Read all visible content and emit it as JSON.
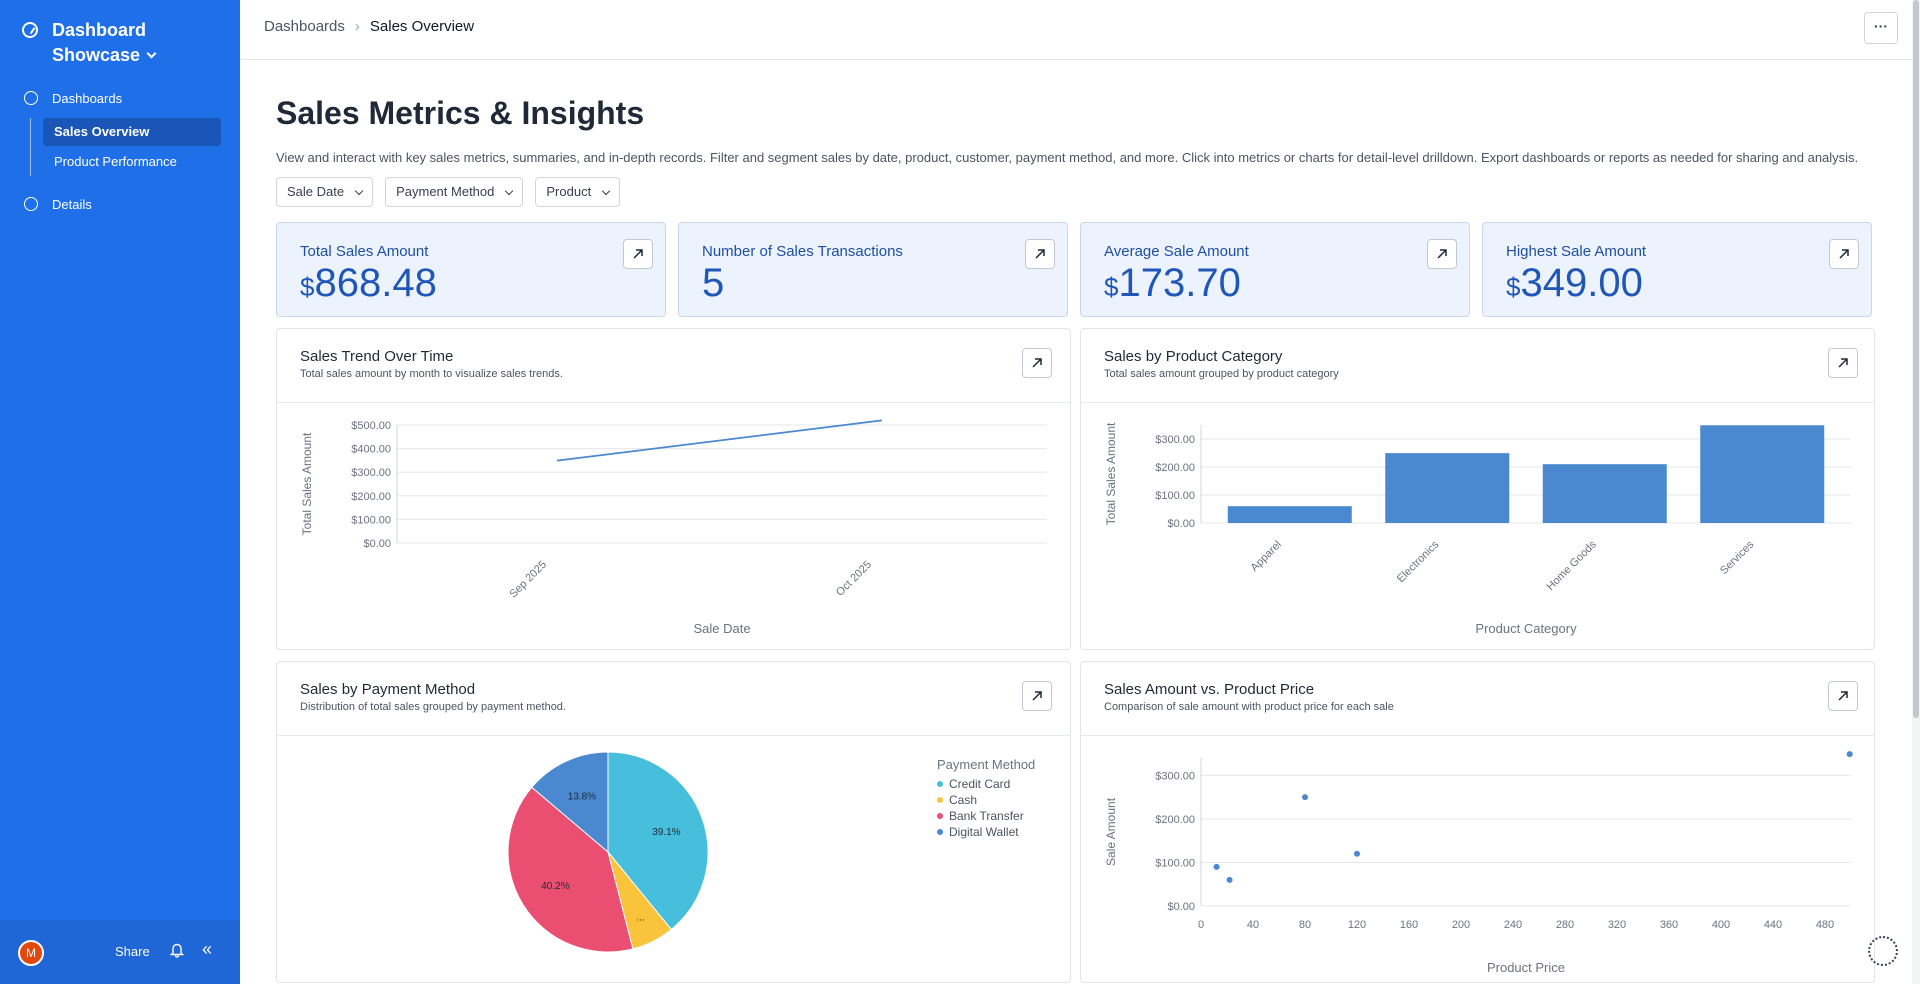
{
  "sidebar": {
    "brand": "Dashboard Showcase",
    "nav_dashboards": "Dashboards",
    "items": [
      {
        "label": "Sales Overview"
      },
      {
        "label": "Product Performance"
      }
    ],
    "nav_details": "Details",
    "avatar_initial": "M",
    "share": "Share"
  },
  "topbar": {
    "breadcrumb_root": "Dashboards",
    "breadcrumb_current": "Sales Overview",
    "more": "···"
  },
  "page": {
    "title": "Sales Metrics & Insights",
    "description": "View and interact with key sales metrics, summaries, and in-depth records. Filter and segment sales by date, product, customer, payment method, and more. Click into metrics or charts for detail-level drilldown. Export dashboards or reports as needed for sharing and analysis."
  },
  "filters": [
    "Sale Date",
    "Payment Method",
    "Product"
  ],
  "metrics": [
    {
      "label": "Total Sales Amount",
      "currency": "$",
      "value": "868.48"
    },
    {
      "label": "Number of Sales Transactions",
      "currency": "",
      "value": "5"
    },
    {
      "label": "Average Sale Amount",
      "currency": "$",
      "value": "173.70"
    },
    {
      "label": "Highest Sale Amount",
      "currency": "$",
      "value": "349.00"
    }
  ],
  "panels": {
    "trend": {
      "title": "Sales Trend Over Time",
      "subtitle": "Total sales amount by month to visualize sales trends."
    },
    "category": {
      "title": "Sales by Product Category",
      "subtitle": "Total sales amount grouped by product category"
    },
    "payment": {
      "title": "Sales by Payment Method",
      "subtitle": "Distribution of total sales grouped by payment method."
    },
    "scatter": {
      "title": "Sales Amount vs. Product Price",
      "subtitle": "Comparison of sale amount with product price for each sale"
    }
  },
  "colors": {
    "sidebar": "#1e6fe8",
    "accent": "#1f56b8",
    "series": "#4a88cf",
    "credit_card": "#47bfdc",
    "cash": "#f9c33b",
    "bank_transfer": "#ea4f72",
    "digital_wallet": "#4a88cf"
  },
  "chart_data": [
    {
      "type": "line",
      "x": [
        "Sep 2025",
        "Oct 2025"
      ],
      "values": [
        349.0,
        519.48
      ],
      "xlabel": "Sale Date",
      "ylabel": "Total Sales Amount",
      "yticks": [
        "$0.00",
        "$100.00",
        "$200.00",
        "$300.00",
        "$400.00",
        "$500.00"
      ],
      "ylim": [
        0,
        500
      ]
    },
    {
      "type": "bar",
      "categories": [
        "Apparel",
        "Electronics",
        "Home Goods",
        "Services"
      ],
      "values": [
        59.99,
        249.5,
        209.99,
        349.0
      ],
      "xlabel": "Product Category",
      "ylabel": "Total Sales Amount",
      "yticks": [
        "$0.00",
        "$100.00",
        "$200.00",
        "$300.00"
      ],
      "ylim": [
        0,
        350
      ]
    },
    {
      "type": "pie",
      "legend_title": "Payment Method",
      "slices": [
        {
          "name": "Credit Card",
          "value": 39.1,
          "label": "39.1%"
        },
        {
          "name": "Cash",
          "value": 6.9,
          "label": "..."
        },
        {
          "name": "Bank Transfer",
          "value": 40.2,
          "label": "40.2%"
        },
        {
          "name": "Digital Wallet",
          "value": 13.8,
          "label": "13.8%"
        }
      ]
    },
    {
      "type": "scatter",
      "points": [
        {
          "x": 12,
          "y": 90
        },
        {
          "x": 22,
          "y": 60
        },
        {
          "x": 80,
          "y": 250
        },
        {
          "x": 120,
          "y": 120
        },
        {
          "x": 499,
          "y": 349
        }
      ],
      "xlabel": "Product Price",
      "ylabel": "Sale Amount",
      "xticks": [
        "0",
        "40",
        "80",
        "120",
        "160",
        "200",
        "240",
        "280",
        "320",
        "360",
        "400",
        "440",
        "480"
      ],
      "yticks": [
        "$0.00",
        "$100.00",
        "$200.00",
        "$300.00"
      ],
      "xlim": [
        0,
        500
      ],
      "ylim": [
        0,
        340
      ]
    }
  ]
}
